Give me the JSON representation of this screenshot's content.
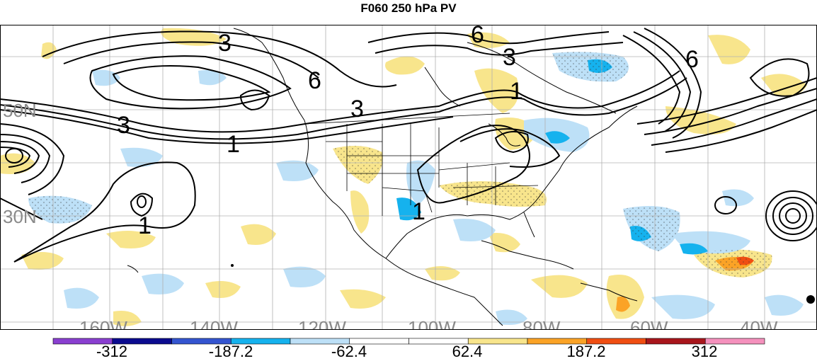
{
  "title": "F060 250 hPa PV",
  "lat_labels": [
    "50N",
    "30N"
  ],
  "lon_labels": [
    "160W",
    "140W",
    "120W",
    "100W",
    "80W",
    "60W",
    "40W"
  ],
  "contour_labels": [
    "3",
    "6",
    "6",
    "3",
    "6",
    "3",
    "3",
    "1",
    "1",
    "1",
    "1"
  ],
  "colorbar": {
    "colors": [
      "#8a3fd0",
      "#0b0b8f",
      "#3455d0",
      "#15b2ee",
      "#bde0f7",
      "#ffffff",
      "#ffffff",
      "#f8e58c",
      "#fba326",
      "#f04e12",
      "#a8161c",
      "#f591bd"
    ],
    "labels": [
      "-312",
      "-187.2",
      "-62.4",
      "62.4",
      "187.2",
      "312"
    ]
  },
  "colors": {
    "shade_pos_light": "#f8e58c",
    "shade_pos_mid": "#fba326",
    "shade_pos_strong": "#f04e12",
    "shade_neg_light": "#bde0f7",
    "shade_neg_mid": "#15b2ee",
    "grid": "#b0b0b0",
    "axis_label": "#8a8a8a"
  }
}
